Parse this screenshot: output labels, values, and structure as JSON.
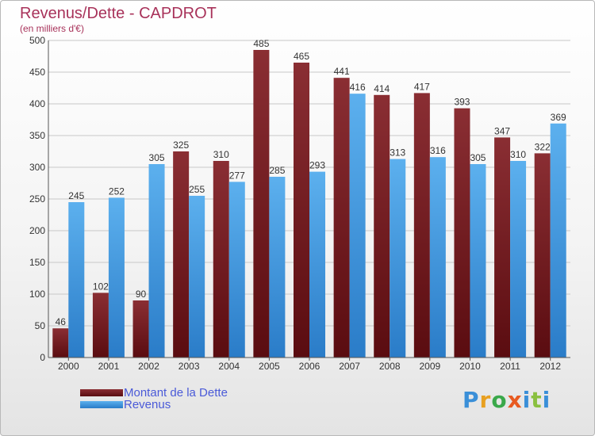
{
  "chart_data": {
    "type": "bar",
    "title": "Revenus/Dette - CAPDROT",
    "subtitle": "(en milliers d'€)",
    "categories": [
      "2000",
      "2001",
      "2002",
      "2003",
      "2004",
      "2005",
      "2006",
      "2007",
      "2008",
      "2009",
      "2010",
      "2011",
      "2012"
    ],
    "series": [
      {
        "name": "Montant de la Dette",
        "color": "#7a1f25",
        "values": [
          46,
          102,
          90,
          325,
          310,
          485,
          465,
          441,
          414,
          417,
          393,
          347,
          322
        ]
      },
      {
        "name": "Revenus",
        "color": "#3a98e0",
        "values": [
          245,
          252,
          305,
          255,
          277,
          285,
          293,
          416,
          313,
          316,
          305,
          310,
          369
        ]
      }
    ],
    "ylim": [
      0,
      500
    ],
    "yticks": [
      0,
      50,
      100,
      150,
      200,
      250,
      300,
      350,
      400,
      450,
      500
    ],
    "grid": true,
    "legend_position": "bottom-left"
  },
  "logo_text": "Proxiti"
}
